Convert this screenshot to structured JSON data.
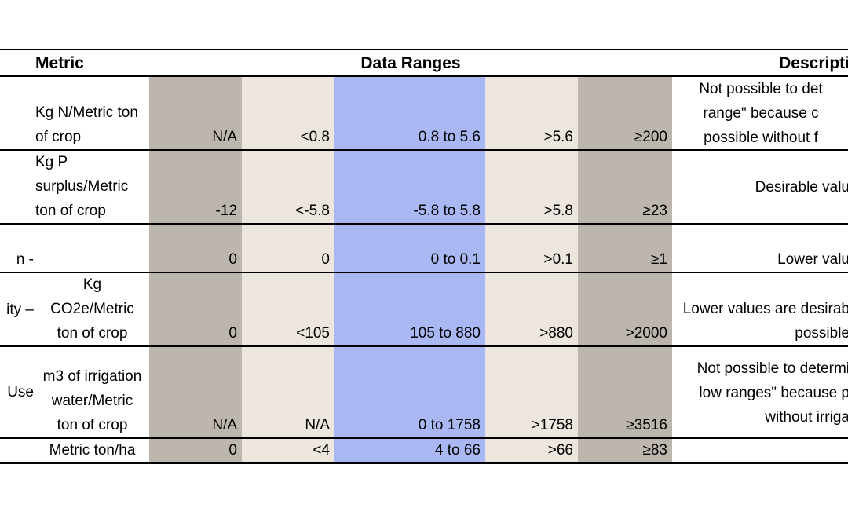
{
  "header": {
    "metric": "Metric",
    "data_ranges": "Data Ranges",
    "description": "Descripti"
  },
  "rows": [
    {
      "label": "",
      "unit": [
        "Kg N/Metric ton",
        "of crop"
      ],
      "na": "N/A",
      "low": "<0.8",
      "desirable": "0.8 to 5.6",
      "high": ">5.6",
      "very_high": "≥200",
      "description": [
        "Not possible to det",
        "range\" because c",
        "possible without f"
      ]
    },
    {
      "label": "",
      "unit": [
        "Kg P",
        "surplus/Metric",
        "ton of crop"
      ],
      "na": "-12",
      "low": "<-5.8",
      "desirable": "-5.8 to 5.8",
      "high": ">5.8",
      "very_high": "≥23",
      "description": [
        "Desirable valu"
      ]
    },
    {
      "label": "n -",
      "unit": [
        ""
      ],
      "na": "0",
      "low": "0",
      "desirable": "0 to 0.1",
      "high": ">0.1",
      "very_high": "≥1",
      "description": [
        "Lower valu"
      ]
    },
    {
      "label": "ity –",
      "unit": [
        "Kg",
        "CO2e/Metric",
        "ton of crop"
      ],
      "na": "0",
      "low": "<105",
      "desirable": "105 to 880",
      "high": ">880",
      "very_high": ">2000",
      "description": [
        "Lower values are desirab",
        "possible"
      ]
    },
    {
      "label": "Use",
      "unit": [
        "m3 of irrigation",
        "water/Metric",
        "ton of crop"
      ],
      "na": "N/A",
      "low": "N/A",
      "desirable": "0 to 1758",
      "high": ">1758",
      "very_high": "≥3516",
      "description": [
        "Not possible to determi",
        "low ranges\" because p",
        "without irriga"
      ]
    },
    {
      "label": "",
      "unit": [
        "Metric ton/ha"
      ],
      "na": "0",
      "low": "<4",
      "desirable": "4  to 66",
      "high": ">66",
      "very_high": "≥83",
      "description": [
        ""
      ]
    }
  ],
  "colors": {
    "na_fill": "#bcb6ae",
    "low_high_fill": "#ece6df",
    "desirable_fill": "#a9b8f2",
    "border": "#000000"
  }
}
